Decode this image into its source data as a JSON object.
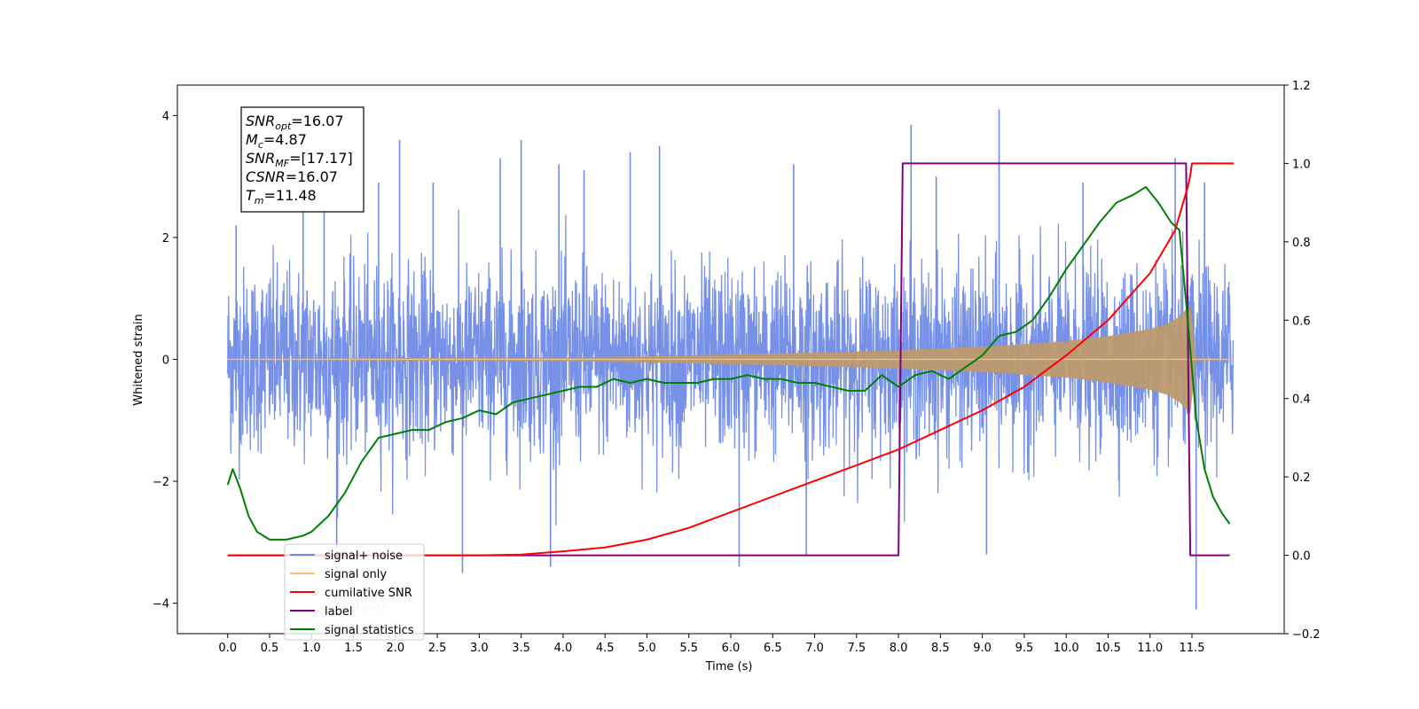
{
  "chart_data": {
    "type": "line",
    "xlabel": "Time (s)",
    "ylabel": "Whitened strain",
    "xlim": [
      -0.6,
      12.6
    ],
    "ylim": [
      -4.5,
      4.5
    ],
    "y2lim": [
      -0.2,
      1.2
    ],
    "x_ticks": [
      0.0,
      0.5,
      1.0,
      1.5,
      2.0,
      2.5,
      3.0,
      3.5,
      4.0,
      4.5,
      5.0,
      5.5,
      6.0,
      6.5,
      7.0,
      7.5,
      8.0,
      8.5,
      9.0,
      9.5,
      10.0,
      10.5,
      11.0,
      11.5
    ],
    "x_tick_labels": [
      "0.0",
      "0.5",
      "1.0",
      "1.5",
      "2.0",
      "2.5",
      "3.0",
      "3.5",
      "4.0",
      "4.5",
      "5.0",
      "5.5",
      "6.0",
      "6.5",
      "7.0",
      "7.5",
      "8.0",
      "8.5",
      "9.0",
      "9.5",
      "10.0",
      "10.5",
      "11.0",
      "11.5"
    ],
    "y_ticks": [
      4,
      2,
      0,
      -2,
      -4
    ],
    "y_tick_labels": [
      "4",
      "2",
      "0",
      "−2",
      "−4"
    ],
    "y2_ticks": [
      1.2,
      1.0,
      0.8,
      0.6,
      0.4,
      0.2,
      0.0,
      -0.2
    ],
    "y2_tick_labels": [
      "1.2",
      "1.0",
      "0.8",
      "0.6",
      "0.4",
      "0.2",
      "0.0",
      "−0.2"
    ],
    "legend_position": "lower-left",
    "legend": [
      "signal+ noise",
      "signal only",
      "cumilative SNR",
      "label",
      "signal statistics"
    ],
    "legend_overlap_text": [
      "signal only",
      "signal statistics"
    ],
    "colors": {
      "noise": "#6f8be6",
      "signal": "#fdbf6f",
      "signal_fill": "#bc9a6e",
      "snr": "#ff0000",
      "label": "#800080",
      "stats": "#008000"
    },
    "noise_series": {
      "name": "signal+ noise",
      "t_range": [
        0.0,
        11.99
      ],
      "typical_range": [
        -1.6,
        1.6
      ],
      "spikes": [
        [
          0.1,
          2.2
        ],
        [
          0.9,
          2.7
        ],
        [
          1.15,
          2.9
        ],
        [
          1.3,
          -3.1
        ],
        [
          1.8,
          2.9
        ],
        [
          2.05,
          3.6
        ],
        [
          2.45,
          2.9
        ],
        [
          2.8,
          -3.5
        ],
        [
          3.25,
          3.3
        ],
        [
          3.5,
          3.6
        ],
        [
          3.85,
          -3.4
        ],
        [
          3.95,
          3.2
        ],
        [
          4.25,
          3.1
        ],
        [
          4.8,
          3.4
        ],
        [
          5.15,
          3.5
        ],
        [
          6.1,
          -3.4
        ],
        [
          6.75,
          3.2
        ],
        [
          6.9,
          -3.2
        ],
        [
          8.15,
          3.85
        ],
        [
          8.45,
          3.0
        ],
        [
          9.05,
          -3.2
        ],
        [
          9.2,
          4.1
        ],
        [
          10.2,
          2.9
        ],
        [
          11.3,
          3.3
        ],
        [
          11.55,
          -4.1
        ],
        [
          11.65,
          2.9
        ]
      ]
    },
    "signal_envelope": {
      "name": "signal only",
      "t": [
        0.0,
        1.0,
        2.0,
        3.0,
        4.0,
        5.0,
        6.0,
        7.0,
        7.5,
        8.0,
        8.5,
        9.0,
        9.5,
        10.0,
        10.5,
        11.0,
        11.2,
        11.35,
        11.45,
        11.48,
        11.55,
        12.0
      ],
      "amp": [
        0.01,
        0.015,
        0.02,
        0.025,
        0.03,
        0.05,
        0.08,
        0.11,
        0.13,
        0.15,
        0.18,
        0.21,
        0.25,
        0.3,
        0.38,
        0.5,
        0.58,
        0.7,
        0.85,
        0.9,
        0.02,
        0.01
      ]
    },
    "cumulative_snr": {
      "name": "cumilative SNR",
      "axis": "right",
      "x": [
        0.0,
        3.0,
        3.5,
        4.0,
        4.5,
        5.0,
        5.5,
        6.0,
        6.5,
        7.0,
        7.5,
        8.0,
        8.5,
        9.0,
        9.5,
        10.0,
        10.5,
        11.0,
        11.3,
        11.45,
        11.48,
        11.5,
        11.55,
        12.0
      ],
      "y": [
        0.0,
        0.0,
        0.002,
        0.01,
        0.02,
        0.04,
        0.07,
        0.11,
        0.15,
        0.19,
        0.23,
        0.27,
        0.32,
        0.37,
        0.43,
        0.51,
        0.6,
        0.72,
        0.83,
        0.94,
        0.97,
        1.0,
        1.0,
        1.0
      ]
    },
    "label_series": {
      "name": "label",
      "axis": "right",
      "x": [
        0.0,
        8.0,
        8.05,
        11.43,
        11.48,
        11.95
      ],
      "y": [
        0.0,
        0.0,
        1.0,
        1.0,
        0.0,
        0.0
      ]
    },
    "stats_series": {
      "name": "signal statistics",
      "axis": "right",
      "x": [
        0.0,
        0.06,
        0.15,
        0.25,
        0.35,
        0.5,
        0.7,
        0.9,
        1.0,
        1.2,
        1.4,
        1.6,
        1.8,
        2.0,
        2.2,
        2.4,
        2.6,
        2.8,
        3.0,
        3.2,
        3.4,
        3.6,
        3.8,
        4.0,
        4.2,
        4.4,
        4.6,
        4.8,
        5.0,
        5.2,
        5.4,
        5.6,
        5.8,
        6.0,
        6.2,
        6.4,
        6.6,
        6.8,
        7.0,
        7.2,
        7.4,
        7.6,
        7.8,
        8.0,
        8.2,
        8.4,
        8.6,
        8.8,
        9.0,
        9.2,
        9.4,
        9.6,
        9.8,
        10.0,
        10.2,
        10.4,
        10.6,
        10.8,
        10.95,
        11.1,
        11.25,
        11.35,
        11.45,
        11.55,
        11.65,
        11.75,
        11.85,
        11.95
      ],
      "y": [
        0.18,
        0.22,
        0.17,
        0.1,
        0.06,
        0.04,
        0.04,
        0.05,
        0.06,
        0.1,
        0.16,
        0.24,
        0.3,
        0.31,
        0.32,
        0.32,
        0.34,
        0.35,
        0.37,
        0.36,
        0.39,
        0.4,
        0.41,
        0.42,
        0.43,
        0.43,
        0.45,
        0.44,
        0.45,
        0.44,
        0.44,
        0.44,
        0.45,
        0.45,
        0.46,
        0.45,
        0.45,
        0.44,
        0.44,
        0.43,
        0.42,
        0.42,
        0.46,
        0.43,
        0.46,
        0.47,
        0.45,
        0.48,
        0.51,
        0.56,
        0.57,
        0.6,
        0.66,
        0.73,
        0.79,
        0.85,
        0.9,
        0.92,
        0.94,
        0.9,
        0.85,
        0.83,
        0.6,
        0.35,
        0.22,
        0.15,
        0.11,
        0.08
      ]
    },
    "annotation": {
      "lines": [
        {
          "var": "SNR",
          "sub": "opt",
          "value": "=16.07"
        },
        {
          "var": "M",
          "sub": "c",
          "value": "=4.87"
        },
        {
          "var": "SNR",
          "sub": "MF",
          "value": "=[17.17]"
        },
        {
          "var": "CSNR",
          "sub": "",
          "value": "=16.07"
        },
        {
          "var": "T",
          "sub": "m",
          "value": "=11.48"
        }
      ]
    }
  }
}
